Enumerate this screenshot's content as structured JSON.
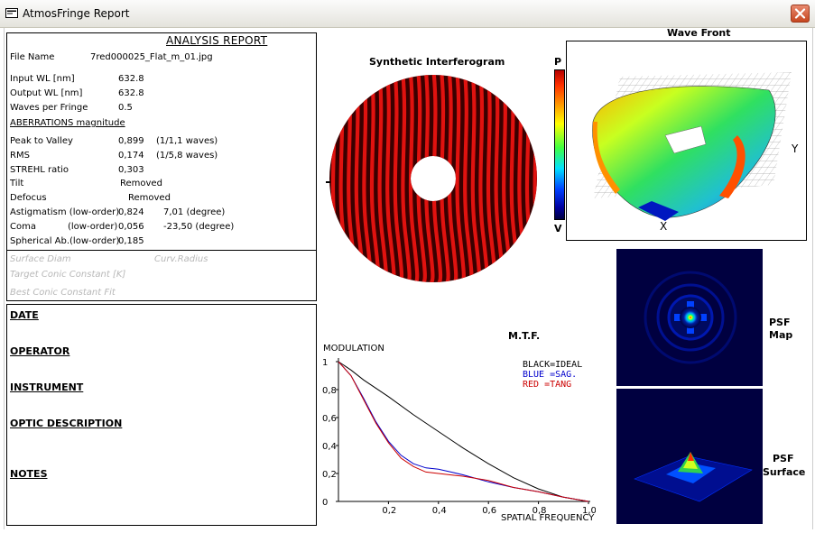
{
  "window": {
    "title": "AtmosFringe  Report"
  },
  "report": {
    "title": "ANALYSIS  REPORT",
    "file_name_label": "File Name",
    "file_name": "7red000025_Flat_m_01.jpg",
    "input_wl_label": "Input  WL [nm]",
    "input_wl": "632.8",
    "output_wl_label": "Output WL [nm]",
    "output_wl": "632.8",
    "waves_per_fringe_label": "Waves per Fringe",
    "waves_per_fringe": "0.5",
    "aberrations_header": "ABERRATIONS magnitude",
    "pv_label": "Peak to Valley",
    "pv_value": "0,899",
    "pv_extra": "(1/1,1 waves)",
    "rms_label": "RMS",
    "rms_value": "0,174",
    "rms_extra": "(1/5,8 waves)",
    "strehl_label": "STREHL ratio",
    "strehl_value": "0,303",
    "tilt_label": "Tilt",
    "tilt_value": "Removed",
    "defocus_label": "Defocus",
    "defocus_value": "Removed",
    "astig_label": "Astigmatism  (low-order)",
    "astig_value": "0,824",
    "astig_extra": "7,01  (degree)",
    "coma_label": "Coma",
    "coma_order": "(low-order)",
    "coma_value": "0,056",
    "coma_extra": "-23,50  (degree)",
    "spherical_label": "Spherical Ab.(low-order)",
    "spherical_value": "0,185",
    "surface_diam_label": "Surface Diam",
    "curv_radius_label": "Curv.Radius",
    "target_conic_label": "Target Conic Constant [K]",
    "best_conic_label": "Best Conic Constant Fit"
  },
  "notes": {
    "date": "DATE",
    "operator": "OPERATOR",
    "instrument": "INSTRUMENT",
    "optic_description": "OPTIC DESCRIPTION",
    "notes": "NOTES"
  },
  "interferogram": {
    "title": "Synthetic Interferogram"
  },
  "wavefront": {
    "title": "Wave Front",
    "scale_top": "P",
    "scale_bottom": "V",
    "y_axis": "Y",
    "x_axis": "X"
  },
  "psf": {
    "map_label_1": "PSF",
    "map_label_2": "Map",
    "surface_label_1": "PSF",
    "surface_label_2": "Surface"
  },
  "chart_data": {
    "type": "line",
    "title": "M.T.F.",
    "ylabel": "MODULATION",
    "xlabel": "SPATIAL FREQUENCY",
    "xlim": [
      0,
      1
    ],
    "ylim": [
      0,
      1
    ],
    "x_ticks": [
      "0,2",
      "0,4",
      "0,6",
      "0,8",
      "1,0"
    ],
    "y_ticks": [
      "0",
      "0,2",
      "0,4",
      "0,6",
      "0,8",
      "1"
    ],
    "legend": [
      "BLACK=IDEAL",
      "BLUE  =SAG.",
      "RED    =TANG"
    ],
    "legend_colors": [
      "#000000",
      "#0000cc",
      "#cc0000"
    ],
    "grid": false,
    "series": [
      {
        "name": "IDEAL",
        "color": "#000000",
        "x": [
          0,
          0.05,
          0.1,
          0.2,
          0.3,
          0.4,
          0.5,
          0.6,
          0.7,
          0.8,
          0.9,
          1.0
        ],
        "y": [
          1.0,
          0.94,
          0.87,
          0.75,
          0.62,
          0.5,
          0.38,
          0.27,
          0.17,
          0.09,
          0.03,
          0.0
        ]
      },
      {
        "name": "SAG.",
        "color": "#0000cc",
        "x": [
          0,
          0.05,
          0.1,
          0.15,
          0.2,
          0.25,
          0.3,
          0.35,
          0.4,
          0.45,
          0.5,
          0.6,
          0.7,
          0.8,
          0.9,
          1.0
        ],
        "y": [
          1.0,
          0.9,
          0.74,
          0.57,
          0.43,
          0.33,
          0.27,
          0.24,
          0.23,
          0.21,
          0.19,
          0.14,
          0.1,
          0.07,
          0.03,
          0.0
        ]
      },
      {
        "name": "TANG",
        "color": "#cc0000",
        "x": [
          0,
          0.05,
          0.1,
          0.15,
          0.2,
          0.25,
          0.3,
          0.35,
          0.4,
          0.45,
          0.5,
          0.6,
          0.7,
          0.8,
          0.9,
          1.0
        ],
        "y": [
          1.0,
          0.9,
          0.73,
          0.56,
          0.42,
          0.31,
          0.25,
          0.21,
          0.2,
          0.19,
          0.18,
          0.15,
          0.1,
          0.07,
          0.03,
          0.0
        ]
      }
    ]
  },
  "colors": {
    "fringe_red": "#e0120f",
    "fringe_dark": "#3a0000",
    "psf_background": "#000033"
  }
}
